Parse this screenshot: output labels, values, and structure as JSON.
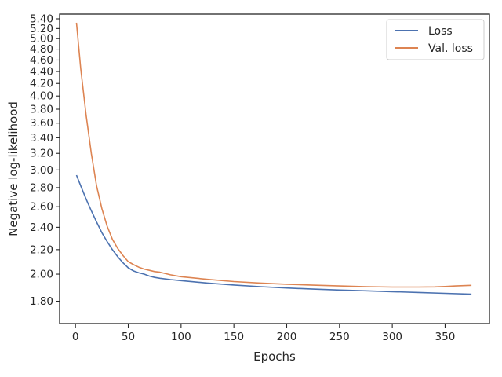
{
  "chart_data": {
    "type": "line",
    "title": "",
    "xlabel": "Epochs",
    "ylabel": "Negative log-likelihood",
    "xlim": [
      -15,
      392
    ],
    "xticks": [
      0,
      50,
      100,
      150,
      200,
      250,
      300,
      350
    ],
    "ylim": [
      1.65,
      5.5
    ],
    "yscale": "log",
    "yticks": [
      1.8,
      2.0,
      2.2,
      2.4,
      2.6,
      2.8,
      3.0,
      3.2,
      3.4,
      3.6,
      3.8,
      4.0,
      4.2,
      4.4,
      4.6,
      4.8,
      5.0,
      5.2,
      5.4
    ],
    "ytick_labels": [
      "1.80",
      "2.00",
      "2.20",
      "2.40",
      "2.60",
      "2.80",
      "3.00",
      "3.20",
      "3.40",
      "3.60",
      "3.80",
      "4.00",
      "4.20",
      "4.40",
      "4.60",
      "4.80",
      "5.00",
      "5.20",
      "5.40"
    ],
    "grid": false,
    "legend_position": "top-right",
    "series": [
      {
        "name": "Loss",
        "color": "#4c72b0",
        "x": [
          1,
          5,
          10,
          15,
          20,
          25,
          30,
          35,
          40,
          45,
          50,
          55,
          60,
          65,
          70,
          75,
          80,
          90,
          100,
          125,
          150,
          175,
          200,
          225,
          250,
          275,
          300,
          325,
          350,
          375
        ],
        "y": [
          2.94,
          2.82,
          2.68,
          2.56,
          2.45,
          2.35,
          2.27,
          2.2,
          2.14,
          2.09,
          2.05,
          2.025,
          2.01,
          2.0,
          1.985,
          1.975,
          1.968,
          1.958,
          1.95,
          1.932,
          1.917,
          1.905,
          1.895,
          1.887,
          1.88,
          1.874,
          1.868,
          1.862,
          1.856,
          1.85
        ]
      },
      {
        "name": "Val. loss",
        "color": "#dd8452",
        "x": [
          1,
          5,
          10,
          15,
          20,
          25,
          30,
          35,
          40,
          45,
          50,
          55,
          60,
          65,
          70,
          75,
          80,
          90,
          100,
          125,
          150,
          175,
          200,
          225,
          250,
          275,
          300,
          325,
          340,
          350,
          360,
          375
        ],
        "y": [
          5.32,
          4.45,
          3.72,
          3.2,
          2.82,
          2.58,
          2.41,
          2.29,
          2.21,
          2.15,
          2.1,
          2.075,
          2.055,
          2.04,
          2.03,
          2.02,
          2.015,
          1.995,
          1.98,
          1.96,
          1.943,
          1.932,
          1.923,
          1.916,
          1.91,
          1.905,
          1.902,
          1.902,
          1.903,
          1.906,
          1.91,
          1.915
        ]
      }
    ]
  }
}
